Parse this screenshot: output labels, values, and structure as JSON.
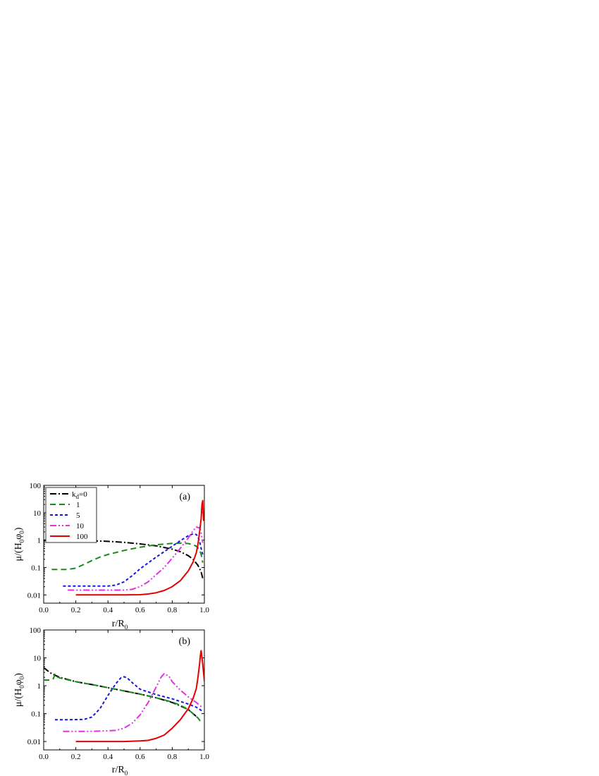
{
  "chart_data": [
    {
      "type": "line",
      "panel_label": "(a)",
      "xlabel": "r/R",
      "xlabel_sub": "0",
      "ylabel": "μ/(H φ )",
      "ylabel_parts": [
        "μ/(H",
        "0",
        "φ",
        "0",
        ")"
      ],
      "xlim": [
        0,
        1.0
      ],
      "ylim": [
        0.005,
        100
      ],
      "yscale": "log",
      "xticks": [
        "0.0",
        "0.2",
        "0.4",
        "0.6",
        "0.8",
        "1.0"
      ],
      "yticks": [
        "0.01",
        "0.1",
        "1",
        "10",
        "100"
      ],
      "legend": {
        "placement": "top-left",
        "title_prefix": "k",
        "title_sub": "d",
        "entries": [
          "=0",
          "1",
          "5",
          "10",
          "100"
        ]
      },
      "series": [
        {
          "name": "0",
          "color": "#000000",
          "dash": "9,3,2,3",
          "x": [
            0.0,
            0.1,
            0.2,
            0.3,
            0.4,
            0.5,
            0.6,
            0.7,
            0.8,
            0.85,
            0.9,
            0.93,
            0.96,
            0.98,
            0.99
          ],
          "y": [
            1.0,
            1.0,
            0.99,
            0.95,
            0.9,
            0.83,
            0.73,
            0.62,
            0.47,
            0.38,
            0.27,
            0.2,
            0.12,
            0.07,
            0.04
          ]
        },
        {
          "name": "1",
          "color": "#1a8a1a",
          "dash": "8,5",
          "x": [
            0.05,
            0.1,
            0.15,
            0.2,
            0.25,
            0.3,
            0.35,
            0.4,
            0.5,
            0.6,
            0.7,
            0.8,
            0.85,
            0.9,
            0.93,
            0.95,
            0.97,
            0.98,
            0.99
          ],
          "y": [
            0.085,
            0.085,
            0.085,
            0.095,
            0.13,
            0.18,
            0.24,
            0.3,
            0.42,
            0.55,
            0.68,
            0.76,
            0.78,
            0.75,
            0.68,
            0.6,
            0.45,
            0.3,
            0.15
          ]
        },
        {
          "name": "5",
          "color": "#1515e6",
          "dash": "4,3",
          "x": [
            0.12,
            0.2,
            0.3,
            0.4,
            0.45,
            0.5,
            0.55,
            0.6,
            0.7,
            0.8,
            0.85,
            0.9,
            0.93,
            0.95,
            0.96,
            0.97,
            0.98,
            0.99
          ],
          "y": [
            0.021,
            0.021,
            0.021,
            0.021,
            0.023,
            0.03,
            0.05,
            0.09,
            0.24,
            0.6,
            0.95,
            1.45,
            1.7,
            1.6,
            1.3,
            0.9,
            0.5,
            0.3
          ]
        },
        {
          "name": "10",
          "color": "#e62ee6",
          "dash": "9,3,2,3,2,3",
          "x": [
            0.15,
            0.2,
            0.3,
            0.4,
            0.5,
            0.55,
            0.6,
            0.65,
            0.7,
            0.75,
            0.8,
            0.85,
            0.9,
            0.93,
            0.95,
            0.97,
            0.98,
            0.99
          ],
          "y": [
            0.015,
            0.015,
            0.015,
            0.015,
            0.015,
            0.016,
            0.02,
            0.03,
            0.055,
            0.1,
            0.22,
            0.5,
            1.2,
            2.2,
            3.0,
            2.8,
            1.8,
            0.8
          ]
        },
        {
          "name": "100",
          "color": "#e60000",
          "dash": "",
          "x": [
            0.2,
            0.3,
            0.4,
            0.5,
            0.6,
            0.65,
            0.7,
            0.75,
            0.8,
            0.85,
            0.9,
            0.93,
            0.95,
            0.96,
            0.97,
            0.98,
            0.985,
            0.99,
            0.995
          ],
          "y": [
            0.01,
            0.01,
            0.01,
            0.01,
            0.0102,
            0.0108,
            0.012,
            0.0145,
            0.02,
            0.033,
            0.075,
            0.16,
            0.35,
            0.7,
            2.0,
            6.0,
            20.0,
            28.0,
            5.0
          ]
        }
      ]
    },
    {
      "type": "line",
      "panel_label": "(b)",
      "xlabel": "r/R",
      "xlabel_sub": "0",
      "ylabel": "μ/(H φ )",
      "ylabel_parts": [
        "μ/(H",
        "0",
        "φ",
        "0",
        ")"
      ],
      "xlim": [
        0,
        1.0
      ],
      "ylim": [
        0.005,
        100
      ],
      "yscale": "log",
      "xticks": [
        "0.0",
        "0.2",
        "0.4",
        "0.6",
        "0.8",
        "1.0"
      ],
      "yticks": [
        "0.01",
        "0.1",
        "1",
        "10",
        "100"
      ],
      "series": [
        {
          "name": "0",
          "color": "#000000",
          "dash": "9,3,2,3",
          "x": [
            0.0,
            0.02,
            0.05,
            0.1,
            0.2,
            0.3,
            0.4,
            0.5,
            0.6,
            0.7,
            0.8,
            0.85,
            0.9,
            0.93,
            0.96
          ],
          "y": [
            4.5,
            3.6,
            2.7,
            2.0,
            1.4,
            1.1,
            0.85,
            0.65,
            0.5,
            0.37,
            0.25,
            0.19,
            0.14,
            0.1,
            0.07
          ]
        },
        {
          "name": "1",
          "color": "#1a8a1a",
          "dash": "8,5",
          "x": [
            0.0,
            0.04,
            0.06,
            0.07,
            0.08,
            0.1,
            0.2,
            0.3,
            0.4,
            0.5,
            0.6,
            0.7,
            0.8,
            0.85,
            0.9,
            0.93,
            0.96,
            0.98
          ],
          "y": [
            1.6,
            1.6,
            1.8,
            2.6,
            2.1,
            1.9,
            1.4,
            1.1,
            0.85,
            0.65,
            0.5,
            0.37,
            0.26,
            0.2,
            0.14,
            0.1,
            0.07,
            0.05
          ]
        },
        {
          "name": "5",
          "color": "#1515e6",
          "dash": "4,3",
          "x": [
            0.07,
            0.15,
            0.25,
            0.3,
            0.35,
            0.4,
            0.45,
            0.48,
            0.5,
            0.52,
            0.55,
            0.6,
            0.7,
            0.8,
            0.9,
            0.95,
            0.99
          ],
          "y": [
            0.06,
            0.06,
            0.062,
            0.075,
            0.15,
            0.45,
            1.2,
            1.9,
            2.1,
            1.9,
            1.3,
            0.75,
            0.48,
            0.34,
            0.22,
            0.17,
            0.12
          ]
        },
        {
          "name": "10",
          "color": "#e62ee6",
          "dash": "9,3,2,3,2,3",
          "x": [
            0.12,
            0.2,
            0.3,
            0.45,
            0.5,
            0.55,
            0.6,
            0.65,
            0.7,
            0.73,
            0.75,
            0.78,
            0.8,
            0.85,
            0.9,
            0.95,
            0.99
          ],
          "y": [
            0.023,
            0.023,
            0.023,
            0.025,
            0.03,
            0.045,
            0.09,
            0.25,
            0.9,
            2.0,
            2.7,
            2.2,
            1.4,
            0.7,
            0.4,
            0.25,
            0.16
          ]
        },
        {
          "name": "100",
          "color": "#e60000",
          "dash": "",
          "x": [
            0.2,
            0.3,
            0.4,
            0.5,
            0.6,
            0.65,
            0.7,
            0.75,
            0.8,
            0.85,
            0.9,
            0.93,
            0.95,
            0.96,
            0.97,
            0.975,
            0.98,
            0.99,
            1.0
          ],
          "y": [
            0.01,
            0.01,
            0.01,
            0.01,
            0.0105,
            0.011,
            0.013,
            0.017,
            0.03,
            0.06,
            0.15,
            0.35,
            0.8,
            2.0,
            6.0,
            12.0,
            18.0,
            6.0,
            1.4
          ]
        }
      ]
    }
  ]
}
